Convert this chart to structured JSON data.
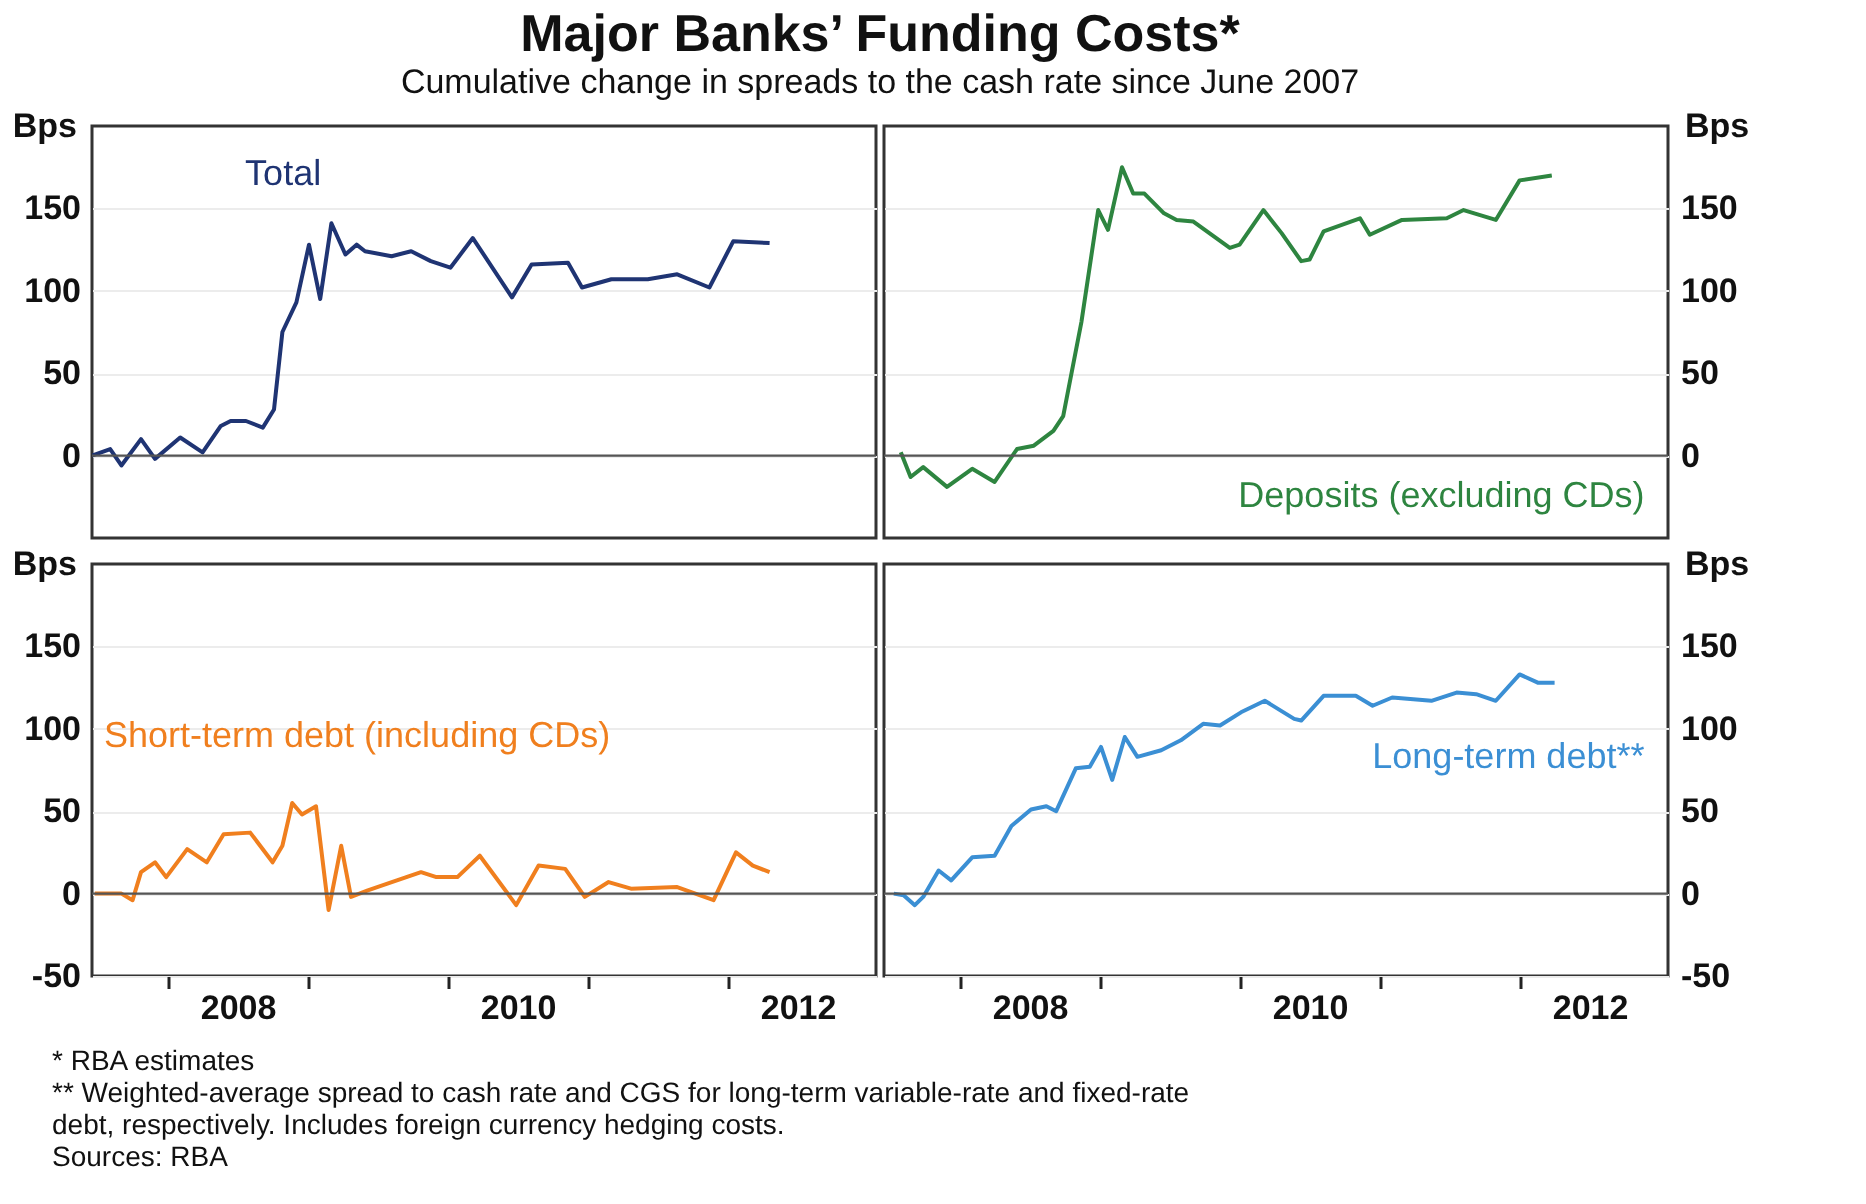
{
  "chart_data": [
    {
      "type": "line",
      "title": "Major Banks’ Funding Costs*",
      "subtitle": "Cumulative change in spreads to the cash rate since June 2007",
      "xlim": [
        2007.46,
        2013.06
      ],
      "ylim": [
        -50,
        200
      ],
      "ylabel": "Bps",
      "yticks": [
        0,
        50,
        100,
        150
      ],
      "tick_labels": "y",
      "grid": "y",
      "ref_lines": [
        {
          "axis": "y",
          "value": 0,
          "color": "#555555"
        }
      ],
      "series": [
        {
          "name": "Total",
          "color": "#1f3473",
          "x": [
            2007.46,
            2007.59,
            2007.67,
            2007.81,
            2007.91,
            2008.09,
            2008.25,
            2008.38,
            2008.45,
            2008.56,
            2008.68,
            2008.76,
            2008.82,
            2008.92,
            2009.01,
            2009.09,
            2009.17,
            2009.27,
            2009.35,
            2009.41,
            2009.6,
            2009.74,
            2009.88,
            2010.02,
            2010.18,
            2010.46,
            2010.6,
            2010.86,
            2010.96,
            2011.17,
            2011.43,
            2011.64,
            2011.87,
            2012.04,
            2012.3
          ],
          "values": [
            0,
            4,
            -6,
            10,
            -2,
            11,
            2,
            18,
            21,
            21,
            17,
            28,
            75,
            93,
            128,
            95,
            141,
            122,
            128,
            124,
            121,
            124,
            118,
            114,
            132,
            96,
            116,
            117,
            102,
            107,
            107,
            110,
            102,
            130,
            129
          ]
        }
      ]
    },
    {
      "type": "line",
      "xlim": [
        2007.46,
        2013.06
      ],
      "ylim": [
        -50,
        200
      ],
      "ylabel": "Bps",
      "yticks": [
        0,
        50,
        100,
        150
      ],
      "tick_labels": "y",
      "grid": "y",
      "ref_lines": [
        {
          "axis": "y",
          "value": 0,
          "color": "#555555"
        }
      ],
      "series": [
        {
          "name": "Deposits (excluding CDs)",
          "color": "#2e8540",
          "x": [
            2007.58,
            2007.65,
            2007.74,
            2007.91,
            2008.09,
            2008.25,
            2008.41,
            2008.53,
            2008.67,
            2008.74,
            2008.87,
            2008.99,
            2009.06,
            2009.16,
            2009.24,
            2009.32,
            2009.46,
            2009.55,
            2009.67,
            2009.93,
            2010.0,
            2010.17,
            2010.3,
            2010.44,
            2010.5,
            2010.6,
            2010.86,
            2010.93,
            2011.16,
            2011.48,
            2011.6,
            2011.83,
            2012.0,
            2012.23
          ],
          "values": [
            2,
            -13,
            -7,
            -19,
            -8,
            -16,
            4,
            6,
            15,
            24,
            81,
            149,
            137,
            175,
            159,
            159,
            147,
            143,
            142,
            126,
            128,
            149,
            135,
            118,
            119,
            136,
            144,
            134,
            143,
            144,
            149,
            143,
            167,
            170
          ]
        }
      ]
    },
    {
      "type": "line",
      "xlim": [
        2007.46,
        2013.06
      ],
      "ylim": [
        -50,
        200
      ],
      "xticks": [
        {
          "value": 2008,
          "label": null
        },
        {
          "value": 2008.5,
          "label": "2008"
        },
        {
          "value": 2009,
          "label": null
        },
        {
          "value": 2010,
          "label": null
        },
        {
          "value": 2010.5,
          "label": "2010"
        },
        {
          "value": 2011,
          "label": null
        },
        {
          "value": 2012,
          "label": null
        },
        {
          "value": 2012.5,
          "label": "2012"
        }
      ],
      "ylabel": "Bps",
      "yticks": [
        -50,
        0,
        50,
        100,
        150
      ],
      "grid": "y",
      "ref_lines": [
        {
          "axis": "y",
          "value": 0,
          "color": "#555555"
        }
      ],
      "series": [
        {
          "name": "Short-term debt (including CDs)",
          "color": "#f07f1e",
          "x": [
            2007.48,
            2007.67,
            2007.75,
            2007.81,
            2007.91,
            2007.99,
            2008.14,
            2008.28,
            2008.4,
            2008.59,
            2008.75,
            2008.82,
            2008.89,
            2008.96,
            2009.06,
            2009.15,
            2009.24,
            2009.31,
            2009.43,
            2009.57,
            2009.81,
            2009.92,
            2010.07,
            2010.23,
            2010.49,
            2010.65,
            2010.84,
            2010.98,
            2011.15,
            2011.31,
            2011.64,
            2011.9,
            2012.06,
            2012.18,
            2012.3
          ],
          "values": [
            0,
            0,
            -4,
            13,
            19,
            10,
            27,
            19,
            36,
            37,
            19,
            29,
            55,
            48,
            53,
            -10,
            29,
            -2,
            2,
            6,
            13,
            10,
            10,
            23,
            -7,
            17,
            15,
            -2,
            7,
            3,
            4,
            -4,
            25,
            17,
            13
          ]
        }
      ]
    },
    {
      "type": "line",
      "xlim": [
        2007.46,
        2013.06
      ],
      "ylim": [
        -50,
        200
      ],
      "xticks": [
        {
          "value": 2008,
          "label": null
        },
        {
          "value": 2008.5,
          "label": "2008"
        },
        {
          "value": 2009,
          "label": null
        },
        {
          "value": 2010,
          "label": null
        },
        {
          "value": 2010.5,
          "label": "2010"
        },
        {
          "value": 2011,
          "label": null
        },
        {
          "value": 2012,
          "label": null
        },
        {
          "value": 2012.5,
          "label": "2012"
        }
      ],
      "ylabel": "Bps",
      "yticks": [
        -50,
        0,
        50,
        100,
        150
      ],
      "grid": "y",
      "ref_lines": [
        {
          "axis": "y",
          "value": 0,
          "color": "#555555"
        }
      ],
      "annotations": [
        "*     RBA estimates",
        "**   Weighted-average spread to cash rate and CGS for long-term variable-rate and fixed-rate debt, respectively. Includes foreign currency hedging costs.",
        "Sources: RBA"
      ],
      "series": [
        {
          "name": "Long-term debt**",
          "color": "#3b8fd4",
          "x": [
            2007.53,
            2007.6,
            2007.68,
            2007.74,
            2007.85,
            2007.94,
            2008.09,
            2008.25,
            2008.37,
            2008.51,
            2008.62,
            2008.69,
            2008.83,
            2008.93,
            2009.01,
            2009.09,
            2009.18,
            2009.27,
            2009.44,
            2009.58,
            2009.74,
            2009.86,
            2010.01,
            2010.18,
            2010.39,
            2010.44,
            2010.6,
            2010.83,
            2010.95,
            2011.09,
            2011.37,
            2011.55,
            2011.69,
            2011.83,
            2012.0,
            2012.13,
            2012.25
          ],
          "values": [
            0,
            -1,
            -7,
            -2,
            14,
            8,
            22,
            23,
            41,
            51,
            53,
            50,
            76,
            77,
            89,
            69,
            95,
            83,
            87,
            93,
            103,
            102,
            110,
            117,
            106,
            105,
            120,
            120,
            114,
            119,
            117,
            122,
            121,
            117,
            133,
            128,
            128
          ]
        }
      ]
    }
  ]
}
